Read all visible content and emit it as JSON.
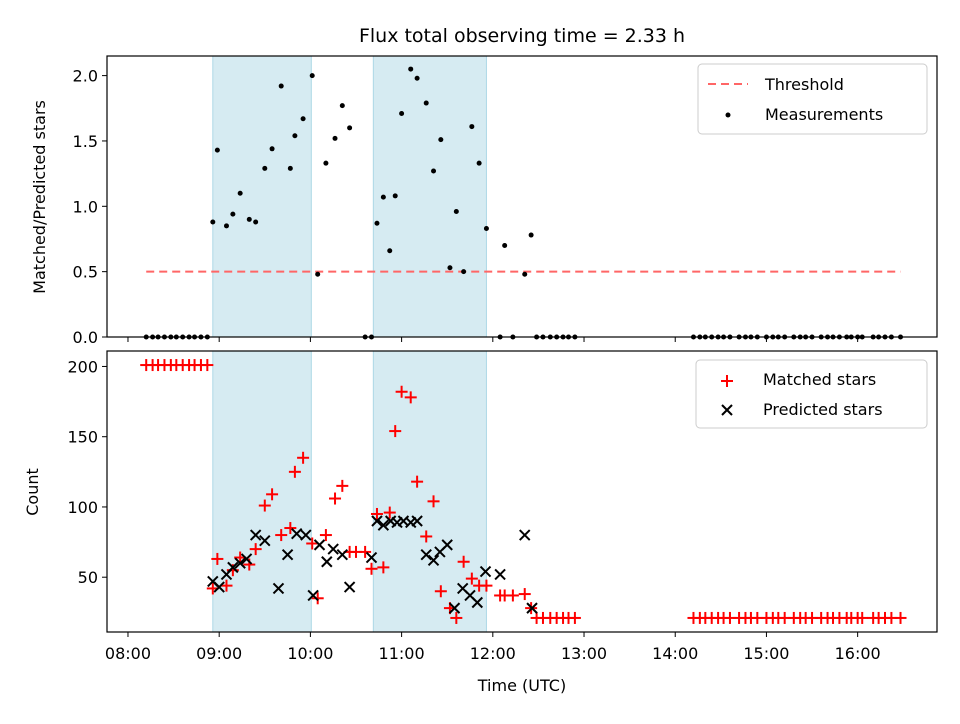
{
  "chart_data": {
    "type": "scatter",
    "title": "Flux total observing time = 2.33 h",
    "xlabel": "Time (UTC)",
    "x_units": "hours UTC",
    "xlim": [
      7.77,
      16.87
    ],
    "x_ticks": [
      {
        "value": 8,
        "label": "08:00"
      },
      {
        "value": 9,
        "label": "09:00"
      },
      {
        "value": 10,
        "label": "10:00"
      },
      {
        "value": 11,
        "label": "11:00"
      },
      {
        "value": 12,
        "label": "12:00"
      },
      {
        "value": 13,
        "label": "13:00"
      },
      {
        "value": 14,
        "label": "14:00"
      },
      {
        "value": 15,
        "label": "15:00"
      },
      {
        "value": 16,
        "label": "16:00"
      }
    ],
    "observing_windows": [
      [
        8.93,
        10.01
      ],
      [
        10.69,
        11.93
      ]
    ],
    "observing_window_color": "#add8e6",
    "top": {
      "ylabel": "Matched/Predicted stars",
      "ylim": [
        0,
        2.15
      ],
      "y_ticks": [
        {
          "value": 0,
          "label": "0.0"
        },
        {
          "value": 0.5,
          "label": "0.5"
        },
        {
          "value": 1.0,
          "label": "1.0"
        },
        {
          "value": 1.5,
          "label": "1.5"
        },
        {
          "value": 2.0,
          "label": "2.0"
        }
      ],
      "threshold": {
        "name": "Threshold",
        "value": 0.5,
        "x_range": [
          8.2,
          16.47
        ],
        "color": "#ff6666"
      },
      "measurements": {
        "name": "Measurements",
        "color": "#000000",
        "x": [
          8.2,
          8.27,
          8.33,
          8.4,
          8.47,
          8.53,
          8.6,
          8.67,
          8.73,
          8.8,
          8.87,
          8.93,
          8.98,
          9.08,
          9.15,
          9.23,
          9.33,
          9.4,
          9.5,
          9.58,
          9.68,
          9.78,
          9.83,
          9.92,
          10.02,
          10.08,
          10.17,
          10.27,
          10.35,
          10.43,
          10.6,
          10.67,
          10.73,
          10.8,
          10.87,
          10.93,
          11.0,
          11.1,
          11.17,
          11.27,
          11.35,
          11.43,
          11.53,
          11.6,
          11.68,
          11.77,
          11.85,
          11.93,
          12.08,
          12.13,
          12.22,
          12.35,
          12.42,
          12.48,
          12.55,
          12.63,
          12.7,
          12.77,
          12.83,
          12.9,
          14.2,
          14.27,
          14.33,
          14.4,
          14.47,
          14.53,
          14.6,
          14.7,
          14.77,
          14.83,
          14.9,
          15.0,
          15.07,
          15.13,
          15.2,
          15.3,
          15.37,
          15.43,
          15.5,
          15.6,
          15.67,
          15.73,
          15.8,
          15.88,
          15.93,
          16.0,
          16.05,
          16.17,
          16.23,
          16.3,
          16.37,
          16.47
        ],
        "y": [
          0,
          0,
          0,
          0,
          0,
          0,
          0,
          0,
          0,
          0,
          0,
          0.88,
          1.43,
          0.85,
          0.94,
          1.1,
          0.9,
          0.88,
          1.29,
          1.44,
          1.92,
          1.29,
          1.54,
          1.67,
          2.0,
          0.48,
          1.33,
          1.52,
          1.77,
          1.6,
          0,
          0,
          0.87,
          1.07,
          0.66,
          1.08,
          1.71,
          2.05,
          1.98,
          1.79,
          1.27,
          1.51,
          0.53,
          0.96,
          0.5,
          1.61,
          1.33,
          0.83,
          0,
          0.7,
          0,
          0.48,
          0.78,
          0,
          0,
          0,
          0,
          0,
          0,
          0,
          0,
          0,
          0,
          0,
          0,
          0,
          0,
          0,
          0,
          0,
          0,
          0,
          0,
          0,
          0,
          0,
          0,
          0,
          0,
          0,
          0,
          0,
          0,
          0,
          0,
          0,
          0,
          0,
          0,
          0,
          0,
          0
        ]
      }
    },
    "bottom": {
      "ylabel": "Count",
      "ylim": [
        11,
        211
      ],
      "y_ticks": [
        {
          "value": 50,
          "label": "50"
        },
        {
          "value": 100,
          "label": "100"
        },
        {
          "value": 150,
          "label": "150"
        },
        {
          "value": 200,
          "label": "200"
        }
      ],
      "matched": {
        "name": "Matched stars",
        "color": "#ff0000",
        "x": [
          8.2,
          8.27,
          8.33,
          8.4,
          8.47,
          8.53,
          8.6,
          8.67,
          8.73,
          8.8,
          8.87,
          8.93,
          8.98,
          9.08,
          9.15,
          9.23,
          9.33,
          9.4,
          9.5,
          9.58,
          9.68,
          9.78,
          9.83,
          9.92,
          10.02,
          10.08,
          10.17,
          10.27,
          10.35,
          10.43,
          10.5,
          10.6,
          10.67,
          10.73,
          10.8,
          10.87,
          10.93,
          11.0,
          11.1,
          11.17,
          11.27,
          11.35,
          11.43,
          11.53,
          11.6,
          11.68,
          11.77,
          11.85,
          11.93,
          12.08,
          12.13,
          12.22,
          12.35,
          12.42,
          12.48,
          12.55,
          12.63,
          12.7,
          12.77,
          12.83,
          12.9,
          14.2,
          14.27,
          14.33,
          14.4,
          14.47,
          14.53,
          14.6,
          14.7,
          14.77,
          14.83,
          14.9,
          15.0,
          15.07,
          15.13,
          15.2,
          15.3,
          15.37,
          15.43,
          15.5,
          15.6,
          15.67,
          15.73,
          15.8,
          15.88,
          15.93,
          16.0,
          16.05,
          16.17,
          16.23,
          16.3,
          16.37,
          16.47
        ],
        "y": [
          201,
          201,
          201,
          201,
          201,
          201,
          201,
          201,
          201,
          201,
          201,
          42,
          63,
          44,
          55,
          64,
          59,
          70,
          101,
          109,
          80,
          85,
          125,
          135,
          74,
          35,
          80,
          106,
          115,
          68,
          68,
          68,
          56,
          95,
          57,
          96,
          154,
          182,
          178,
          118,
          79,
          104,
          40,
          28,
          21,
          61,
          49,
          44,
          44,
          37,
          37,
          37,
          38,
          28,
          21,
          21,
          21,
          21,
          21,
          21,
          21,
          21,
          21,
          21,
          21,
          21,
          21,
          21,
          21,
          21,
          21,
          21,
          21,
          21,
          21,
          21,
          21,
          21,
          21,
          21,
          21,
          21,
          21,
          21,
          21,
          21,
          21,
          21,
          21,
          21,
          21,
          21,
          21
        ]
      },
      "predicted": {
        "name": "Predicted stars",
        "color": "#000000",
        "x": [
          8.93,
          9.0,
          9.08,
          9.15,
          9.23,
          9.3,
          9.4,
          9.5,
          9.65,
          9.75,
          9.85,
          9.95,
          10.03,
          10.1,
          10.18,
          10.25,
          10.35,
          10.43,
          10.67,
          10.73,
          10.8,
          10.88,
          10.95,
          11.02,
          11.1,
          11.17,
          11.27,
          11.35,
          11.42,
          11.5,
          11.58,
          11.67,
          11.75,
          11.83,
          11.92,
          12.08,
          12.35,
          12.43
        ],
        "y": [
          47,
          43,
          52,
          57,
          60,
          63,
          80,
          76,
          42,
          66,
          81,
          80,
          37,
          73,
          61,
          70,
          66,
          43,
          64,
          90,
          87,
          90,
          89,
          90,
          89,
          90,
          66,
          62,
          68,
          73,
          28,
          42,
          37,
          32,
          54,
          52,
          80,
          28
        ]
      }
    }
  }
}
